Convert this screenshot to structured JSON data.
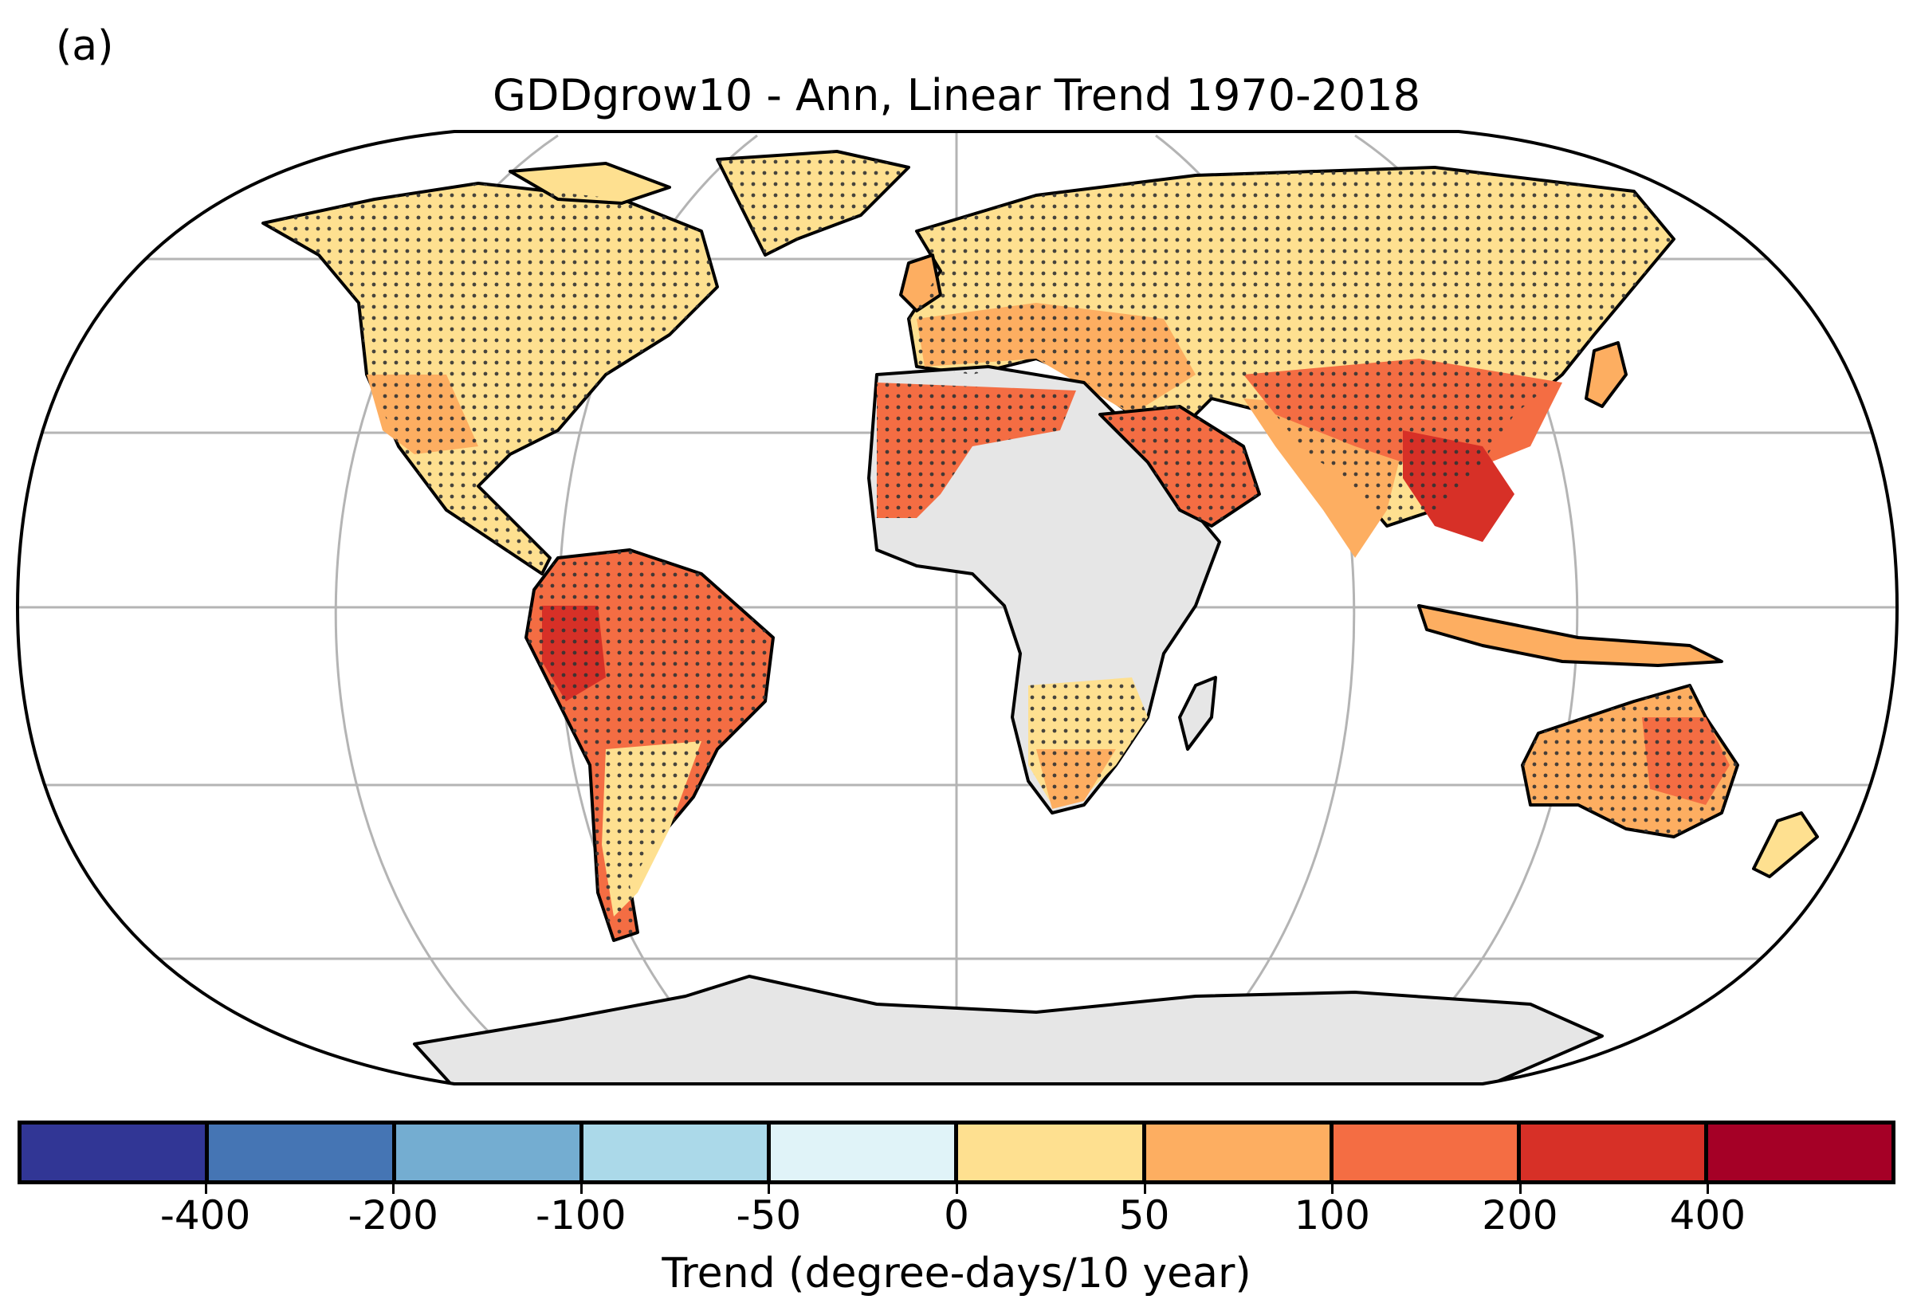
{
  "panel_label": "(a)",
  "title": "GDDgrow10 - Ann, Linear Trend 1970-2018",
  "colorbar": {
    "title": "Trend (degree-days/10 year)",
    "tick_labels": [
      "-400",
      "-200",
      "-100",
      "-50",
      "0",
      "50",
      "100",
      "200",
      "400"
    ],
    "colors": [
      "#313695",
      "#4575b4",
      "#74add1",
      "#abd9e9",
      "#e0f3f8",
      "#fee090",
      "#fdae61",
      "#f46d43",
      "#d73027",
      "#a50026"
    ]
  },
  "map": {
    "projection": "Robinson",
    "no_data_color": "#e6e6e6",
    "stippling": "dots indicate statistically significant trends",
    "regions": [
      {
        "name": "North America",
        "trend_class": "0 to 50"
      },
      {
        "name": "Central America",
        "trend_class": "0 to 50"
      },
      {
        "name": "Greenland",
        "trend_class": "0 to 50"
      },
      {
        "name": "South America north",
        "trend_class": "100 to 200"
      },
      {
        "name": "Peru",
        "trend_class": "200 to 400"
      },
      {
        "name": "South America south",
        "trend_class": "0 to 50"
      },
      {
        "name": "Europe",
        "trend_class": "50 to 100"
      },
      {
        "name": "Russia",
        "trend_class": "0 to 50"
      },
      {
        "name": "North Africa",
        "trend_class": "100 to 200"
      },
      {
        "name": "Central Africa",
        "trend_class": "no data"
      },
      {
        "name": "Southern Africa",
        "trend_class": "0 to 100"
      },
      {
        "name": "Middle East",
        "trend_class": "100 to 200"
      },
      {
        "name": "Central Asia",
        "trend_class": "0 to 50"
      },
      {
        "name": "South Asia",
        "trend_class": "50 to 100"
      },
      {
        "name": "China south",
        "trend_class": "100 to 200"
      },
      {
        "name": "Southeast Asia",
        "trend_class": "200 to 400"
      },
      {
        "name": "Australia",
        "trend_class": "100 to 200"
      },
      {
        "name": "New Zealand",
        "trend_class": "0 to 50"
      },
      {
        "name": "Antarctica",
        "trend_class": "no data"
      }
    ]
  }
}
